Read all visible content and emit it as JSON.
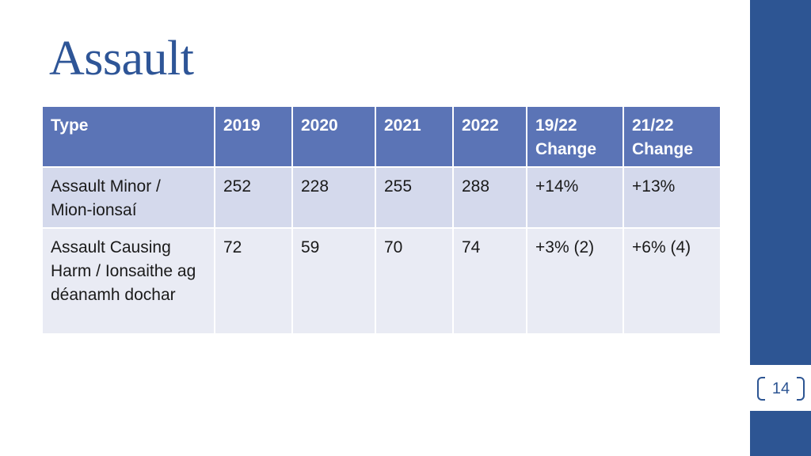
{
  "slide": {
    "title": "Assault",
    "page_number": "14"
  },
  "table": {
    "headers": [
      "Type",
      "2019",
      "2020",
      "2021",
      "2022",
      "19/22 Change",
      "21/22 Change"
    ],
    "rows": [
      [
        "Assault Minor / Mion-ionsaí",
        "252",
        "228",
        "255",
        "288",
        "+14%",
        "+13%"
      ],
      [
        "Assault Causing Harm / Ionsaithe ag déanamh dochar",
        "72",
        "59",
        "70",
        "74",
        "+3% (2)",
        "+6% (4)"
      ]
    ]
  },
  "colors": {
    "title": "#2e5597",
    "accent_bar": "#2d5593",
    "header_fill": "#5b74b6",
    "row_odd_fill": "#d4d9ec",
    "row_even_fill": "#e9ebf4"
  }
}
